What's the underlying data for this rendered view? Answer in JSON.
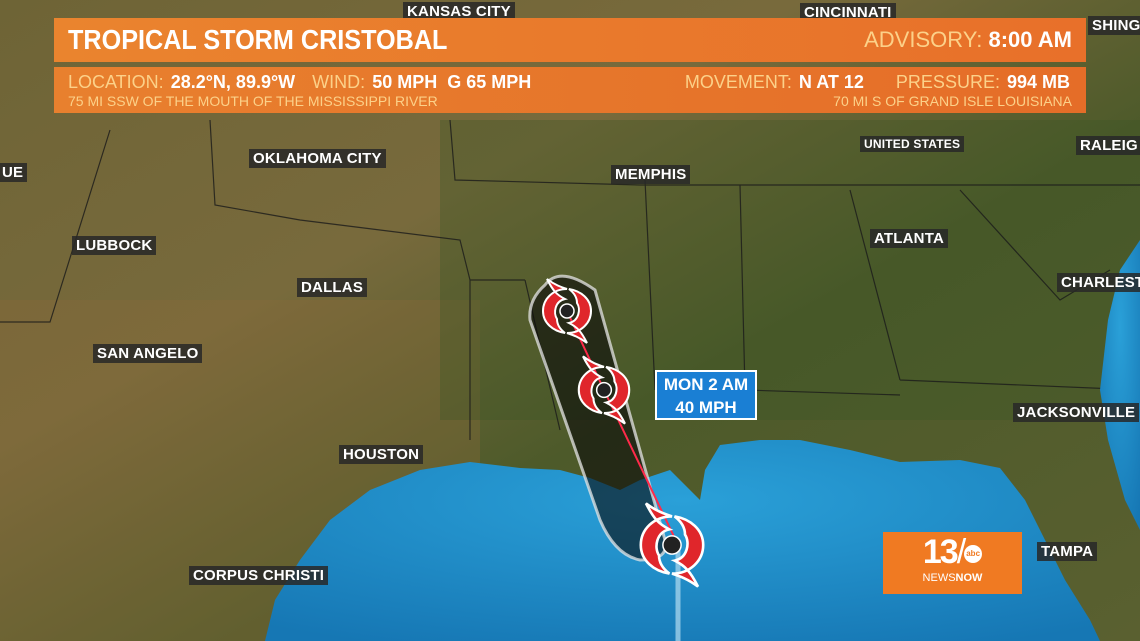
{
  "banner": {
    "storm_name": "TROPICAL STORM CRISTOBAL",
    "advisory_label": "ADVISORY:",
    "advisory_time": "8:00 AM",
    "location_label": "LOCATION:",
    "location_value": "28.2°N, 89.9°W",
    "wind_label": "WIND:",
    "wind_value": "50 MPH  G 65 MPH",
    "movement_label": "MOVEMENT:",
    "movement_value": "N AT 12",
    "pressure_label": "PRESSURE:",
    "pressure_value": "994 MB",
    "reference_1": "75 MI SSW OF THE MOUTH OF THE MISSISSIPPI RIVER",
    "reference_2": "70 MI S OF GRAND ISLE LOUISIANA"
  },
  "cities": [
    "KANSAS CITY",
    "CINCINNATI",
    "SHINGT",
    "UE",
    "OKLAHOMA CITY",
    "MEMPHIS",
    "UNITED STATES",
    "RALEIG",
    "LUBBOCK",
    "DALLAS",
    "ATLANTA",
    "CHARLEST",
    "SAN ANGELO",
    "JACKSONVILLE",
    "HOUSTON",
    "CORPUS CHRISTI",
    "TAMPA"
  ],
  "forecast_label": {
    "time": "MON 2 AM",
    "wind": "40 MPH"
  },
  "logo": {
    "number": "13",
    "network": "abc",
    "brand_a": "NEWS",
    "brand_b": "NOW"
  },
  "colors": {
    "banner": "#e8782c",
    "label": "#fcd189",
    "forecast_box": "#1a7fd4",
    "storm_icon": "#e0262b",
    "water": "#1e8fc8"
  }
}
